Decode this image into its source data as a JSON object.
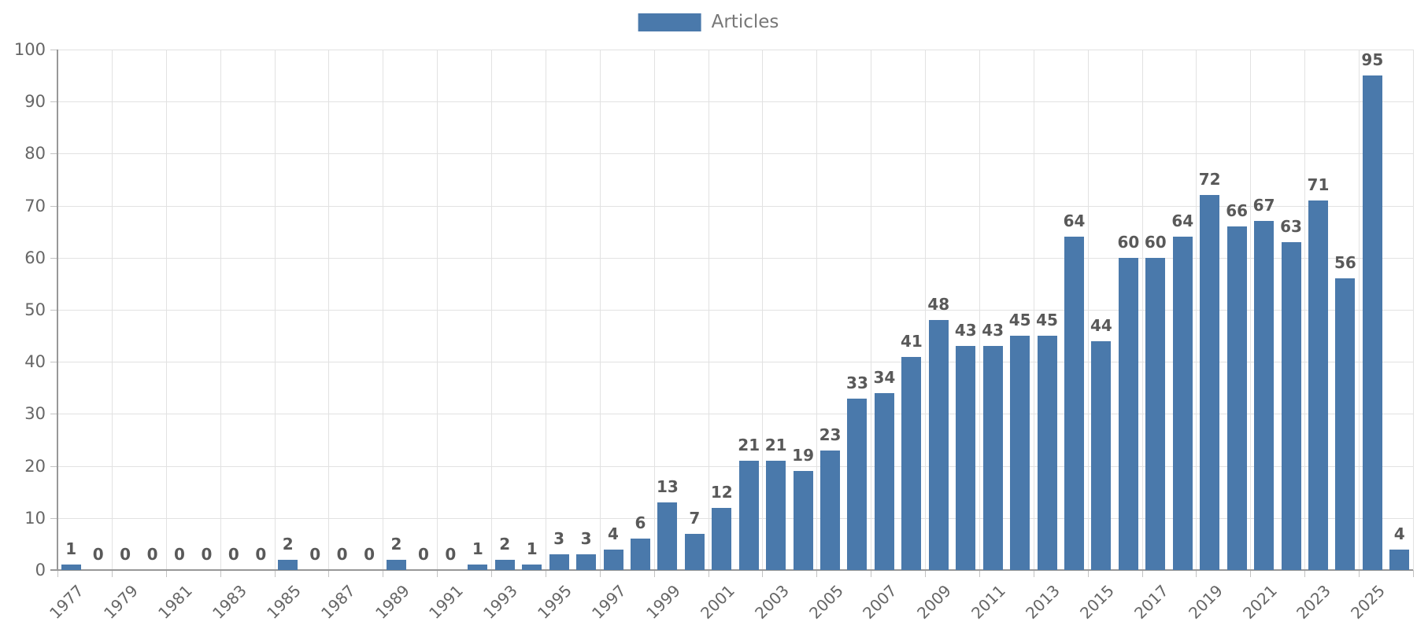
{
  "chart_data": {
    "type": "bar",
    "title": "",
    "xlabel": "",
    "ylabel": "",
    "legend_label": "Articles",
    "legend_position": "top",
    "grid": true,
    "ylim": [
      0,
      100
    ],
    "ytick_step": 10,
    "ytick_labels": [
      "0",
      "10",
      "20",
      "30",
      "40",
      "50",
      "60",
      "70",
      "80",
      "90",
      "100"
    ],
    "xtick_labels": [
      "1977",
      "1979",
      "1981",
      "1983",
      "1985",
      "1987",
      "1989",
      "1991",
      "1993",
      "1995",
      "1997",
      "1999",
      "2001",
      "2003",
      "2005",
      "2007",
      "2009",
      "2011",
      "2013",
      "2015",
      "2017",
      "2019",
      "2021",
      "2023",
      "2025"
    ],
    "categories": [
      "1977",
      "1978",
      "1979",
      "1980",
      "1981",
      "1982",
      "1983",
      "1984",
      "1985",
      "1986",
      "1987",
      "1988",
      "1989",
      "1990",
      "1991",
      "1992",
      "1993",
      "1994",
      "1995",
      "1996",
      "1997",
      "1998",
      "1999",
      "2000",
      "2001",
      "2002",
      "2003",
      "2004",
      "2005",
      "2006",
      "2007",
      "2008",
      "2009",
      "2010",
      "2011",
      "2012",
      "2013",
      "2014",
      "2015",
      "2016",
      "2017",
      "2018",
      "2019",
      "2020",
      "2021",
      "2022",
      "2023",
      "2024",
      "2025",
      "2026"
    ],
    "series": [
      {
        "name": "Articles",
        "values": [
          1,
          0,
          0,
          0,
          0,
          0,
          0,
          0,
          2,
          0,
          0,
          0,
          2,
          0,
          0,
          1,
          2,
          1,
          3,
          3,
          4,
          6,
          13,
          7,
          12,
          21,
          21,
          19,
          23,
          33,
          34,
          41,
          48,
          43,
          43,
          45,
          45,
          64,
          44,
          60,
          60,
          64,
          72,
          66,
          67,
          63,
          71,
          56,
          95,
          4
        ]
      }
    ],
    "colors": {
      "bar": "#4a79ab",
      "grid": "#e2e2e2",
      "axis": "#989898",
      "tick": "#c2c2c2",
      "value_label": "#595959",
      "axis_label": "#666666",
      "legend_text": "#777777",
      "background": "#ffffff"
    }
  }
}
